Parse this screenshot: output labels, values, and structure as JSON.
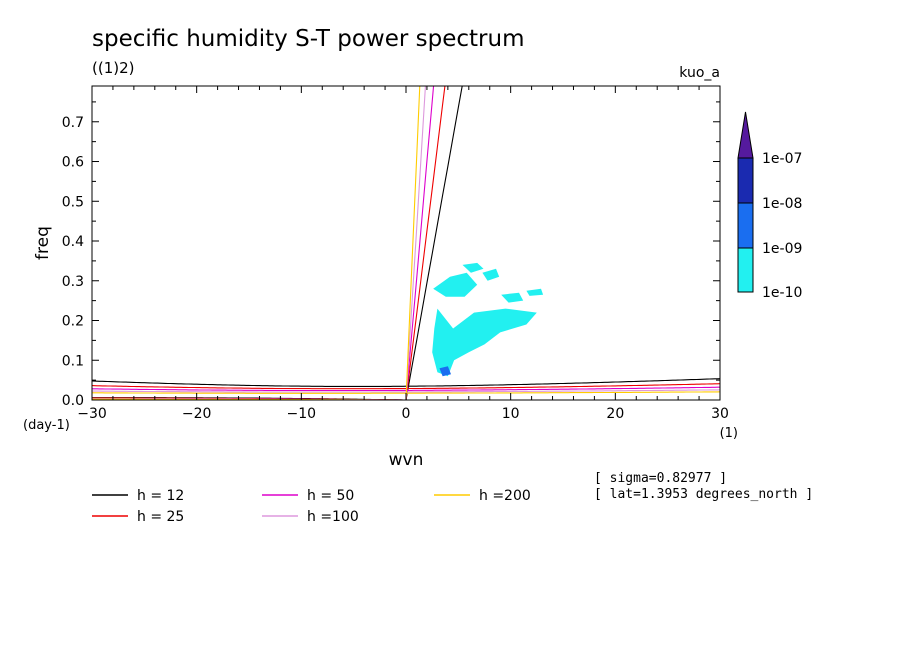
{
  "chart_data": {
    "type": "line",
    "title": "specific humidity S-T power spectrum",
    "subtitle": "((1)2)",
    "top_right_label": "kuo_a",
    "xlabel": "wvn",
    "xunit": "(1)",
    "ylabel": "freq",
    "yunit": "(day-1)",
    "xlim": [
      -30,
      30
    ],
    "ylim": [
      0,
      0.79
    ],
    "xticks": [
      -30,
      -20,
      -10,
      0,
      10,
      20,
      30
    ],
    "xtick_labels": [
      "−30",
      "−20",
      "−10",
      "0",
      "10",
      "20",
      "30"
    ],
    "yticks": [
      0,
      0.1,
      0.2,
      0.3,
      0.4,
      0.5,
      0.6,
      0.7
    ],
    "ytick_labels": [
      "0.0",
      "0.1",
      "0.2",
      "0.3",
      "0.4",
      "0.5",
      "0.6",
      "0.7"
    ],
    "grid": false,
    "series": [
      {
        "name": "h = 12",
        "h": 12,
        "color": "#000000"
      },
      {
        "name": "h = 25",
        "h": 25,
        "color": "#ee0000"
      },
      {
        "name": "h = 50",
        "h": 50,
        "color": "#dd00cc"
      },
      {
        "name": "h =100",
        "h": 100,
        "color": "#dd99dd"
      },
      {
        "name": "h =200",
        "h": 200,
        "color": "#ffcc00"
      }
    ],
    "colorbar": {
      "labels": [
        "1e-07",
        "1e-08",
        "1e-09",
        "1e-10"
      ],
      "colors": [
        "#551a9e",
        "#1a2ab0",
        "#1a6ef0",
        "#22f0f0"
      ]
    },
    "shaded_regions": [
      {
        "level": "1e-10",
        "color": "#22f0f0",
        "points": [
          [
            3.0,
            0.23
          ],
          [
            4.5,
            0.18
          ],
          [
            6.5,
            0.22
          ],
          [
            9.5,
            0.23
          ],
          [
            12.5,
            0.22
          ],
          [
            11.5,
            0.19
          ],
          [
            9.0,
            0.17
          ],
          [
            7.5,
            0.14
          ],
          [
            6.0,
            0.12
          ],
          [
            4.6,
            0.1
          ],
          [
            4.0,
            0.06
          ],
          [
            3.0,
            0.07
          ],
          [
            2.5,
            0.12
          ],
          [
            2.7,
            0.18
          ]
        ]
      },
      {
        "level": "1e-10",
        "color": "#22f0f0",
        "points": [
          [
            2.6,
            0.28
          ],
          [
            4.2,
            0.31
          ],
          [
            5.8,
            0.32
          ],
          [
            6.8,
            0.29
          ],
          [
            5.6,
            0.26
          ],
          [
            3.8,
            0.26
          ]
        ]
      },
      {
        "level": "1e-10",
        "color": "#22f0f0",
        "points": [
          [
            5.4,
            0.34
          ],
          [
            6.8,
            0.345
          ],
          [
            7.4,
            0.33
          ],
          [
            6.2,
            0.32
          ]
        ]
      },
      {
        "level": "1e-10",
        "color": "#22f0f0",
        "points": [
          [
            7.3,
            0.32
          ],
          [
            8.6,
            0.33
          ],
          [
            8.9,
            0.31
          ],
          [
            7.8,
            0.3
          ]
        ]
      },
      {
        "level": "1e-10",
        "color": "#22f0f0",
        "points": [
          [
            9.1,
            0.265
          ],
          [
            10.8,
            0.27
          ],
          [
            11.2,
            0.25
          ],
          [
            9.8,
            0.245
          ]
        ]
      },
      {
        "level": "1e-10",
        "color": "#22f0f0",
        "points": [
          [
            11.5,
            0.275
          ],
          [
            12.9,
            0.28
          ],
          [
            13.1,
            0.265
          ],
          [
            11.8,
            0.262
          ]
        ]
      },
      {
        "level": "1e-09",
        "color": "#1a6ef0",
        "points": [
          [
            3.2,
            0.08
          ],
          [
            4.0,
            0.085
          ],
          [
            4.3,
            0.065
          ],
          [
            3.5,
            0.06
          ]
        ]
      }
    ],
    "annotations": [
      "[ sigma=0.82977 ]",
      "[ lat=1.3953 degrees_north ]"
    ]
  }
}
